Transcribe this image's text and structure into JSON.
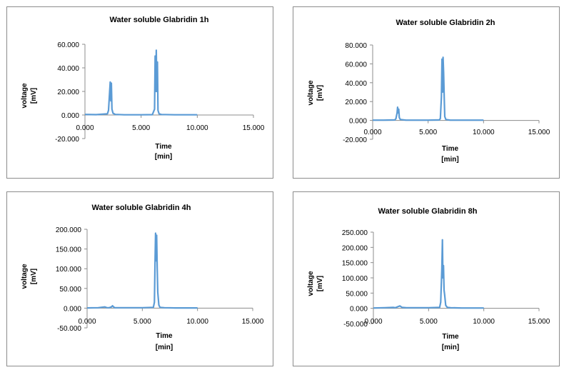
{
  "chart_data": [
    {
      "type": "line",
      "title": "Water soluble Glabridin 1h",
      "xlabel": [
        "Time",
        "[min]"
      ],
      "ylabel": [
        "voltage",
        "[mV]"
      ],
      "xlim": [
        0,
        15
      ],
      "ylim": [
        -20,
        60
      ],
      "x_ticks": [
        0,
        5,
        10,
        15
      ],
      "x_tick_labels": [
        "0.000",
        "5.000",
        "10.000",
        "15.000"
      ],
      "y_ticks": [
        -20,
        0,
        20,
        40,
        60
      ],
      "y_tick_labels": [
        "-20.000",
        "0.000",
        "20.000",
        "40.000",
        "60.000"
      ],
      "grid": false,
      "legend": "none",
      "series": [
        {
          "color": "#5b9bd5",
          "x": [
            0.0,
            1.0,
            2.0,
            2.1,
            2.2,
            2.25,
            2.3,
            2.35,
            2.4,
            2.5,
            2.7,
            3.5,
            5.0,
            6.0,
            6.2,
            6.25,
            6.3,
            6.35,
            6.4,
            6.45,
            6.5,
            6.6,
            6.8,
            8.0,
            10.0
          ],
          "y": [
            0.5,
            0.3,
            1.0,
            4.0,
            20.0,
            28.0,
            12.0,
            27.0,
            5.0,
            1.5,
            0.5,
            0.2,
            0.2,
            0.3,
            5.0,
            50.0,
            20.0,
            55.0,
            20.0,
            45.0,
            4.0,
            1.0,
            0.4,
            0.2,
            0.2
          ]
        }
      ]
    },
    {
      "type": "line",
      "title": "Water soluble Glabridin 2h",
      "xlabel": [
        "Time",
        "[min]"
      ],
      "ylabel": [
        "voltage",
        "[mV]"
      ],
      "xlim": [
        0,
        15
      ],
      "ylim": [
        -20,
        80
      ],
      "x_ticks": [
        0,
        5,
        10,
        15
      ],
      "x_tick_labels": [
        "0.000",
        "5.000",
        "10.000",
        "15.000"
      ],
      "y_ticks": [
        -20,
        0,
        20,
        40,
        60,
        80
      ],
      "y_tick_labels": [
        "-20.000",
        "0.000",
        "20.000",
        "40.000",
        "60.000",
        "80.000"
      ],
      "grid": false,
      "legend": "none",
      "series": [
        {
          "color": "#5b9bd5",
          "x": [
            0.0,
            1.0,
            2.0,
            2.1,
            2.2,
            2.25,
            2.3,
            2.35,
            2.4,
            2.5,
            3.0,
            5.0,
            6.0,
            6.1,
            6.2,
            6.25,
            6.3,
            6.35,
            6.4,
            6.45,
            6.5,
            6.6,
            7.0,
            8.0,
            10.0
          ],
          "y": [
            0.3,
            0.3,
            0.5,
            2.0,
            8.0,
            14.0,
            8.0,
            12.0,
            3.0,
            1.0,
            0.3,
            0.3,
            0.5,
            2.0,
            25.0,
            65.0,
            30.0,
            67.0,
            50.0,
            25.0,
            4.0,
            1.0,
            0.3,
            0.3,
            0.3
          ]
        }
      ]
    },
    {
      "type": "line",
      "title": "Water soluble Glabridin 4h",
      "xlabel": [
        "Time",
        "[min]"
      ],
      "ylabel": [
        "voltage",
        "[mV]"
      ],
      "xlim": [
        0,
        15
      ],
      "ylim": [
        -50,
        200
      ],
      "x_ticks": [
        0,
        5,
        10,
        15
      ],
      "x_tick_labels": [
        "0.000",
        "5.000",
        "10.000",
        "15.000"
      ],
      "y_ticks": [
        -50,
        0,
        50,
        100,
        150,
        200
      ],
      "y_tick_labels": [
        "-50.000",
        "0.000",
        "50.000",
        "100.000",
        "150.000",
        "200.000"
      ],
      "grid": false,
      "legend": "none",
      "series": [
        {
          "color": "#5b9bd5",
          "x": [
            0.0,
            1.0,
            1.6,
            1.8,
            2.0,
            2.2,
            2.3,
            2.4,
            2.5,
            3.0,
            5.0,
            6.0,
            6.1,
            6.15,
            6.2,
            6.25,
            6.3,
            6.35,
            6.4,
            6.5,
            6.6,
            7.0,
            8.0,
            10.0
          ],
          "y": [
            0.5,
            1.0,
            3.0,
            1.0,
            1.0,
            3.0,
            6.0,
            3.0,
            1.0,
            1.0,
            1.0,
            2.0,
            15.0,
            110.0,
            190.0,
            120.0,
            185.0,
            100.0,
            40.0,
            8.0,
            2.0,
            1.0,
            0.5,
            0.5
          ]
        }
      ]
    },
    {
      "type": "line",
      "title": "Water soluble Glabridin  8h",
      "xlabel": [
        "Time",
        "[min]"
      ],
      "ylabel": [
        "voltage",
        "[mV]"
      ],
      "xlim": [
        0,
        15
      ],
      "ylim": [
        -50,
        250
      ],
      "x_ticks": [
        0,
        5,
        10,
        15
      ],
      "x_tick_labels": [
        "0.000",
        "5.000",
        "10.000",
        "15.000"
      ],
      "y_ticks": [
        -50,
        0,
        50,
        100,
        150,
        200,
        250
      ],
      "y_tick_labels": [
        "-50.000",
        "0.000",
        "50.000",
        "100.000",
        "150.000",
        "200.000",
        "250.000"
      ],
      "grid": false,
      "legend": "none",
      "series": [
        {
          "color": "#5b9bd5",
          "x": [
            0.0,
            1.0,
            1.8,
            2.0,
            2.2,
            2.4,
            2.6,
            3.0,
            5.0,
            6.0,
            6.1,
            6.2,
            6.25,
            6.3,
            6.35,
            6.4,
            6.45,
            6.55,
            6.7,
            7.0,
            8.0,
            10.0
          ],
          "y": [
            1.0,
            2.0,
            3.0,
            2.0,
            5.0,
            8.0,
            3.0,
            2.0,
            2.0,
            3.0,
            20.0,
            130.0,
            225.0,
            100.0,
            140.0,
            60.0,
            45.0,
            10.0,
            3.0,
            2.0,
            1.0,
            1.0
          ]
        }
      ]
    }
  ]
}
